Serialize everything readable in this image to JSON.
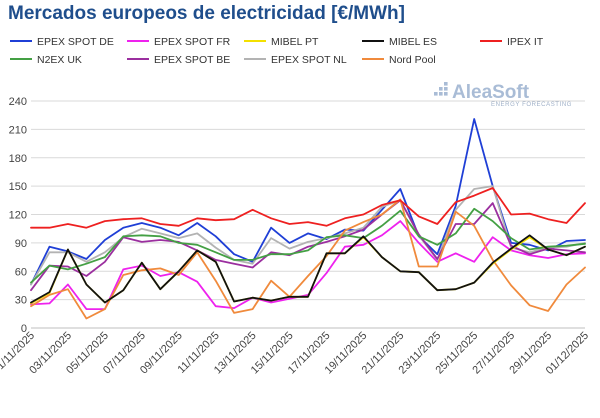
{
  "title": "Mercados europeos de electricidad [€/MWh]",
  "logo": {
    "name": "AleaSoft",
    "tagline": "ENERGY FORECASTING",
    "color": "#a9bcd6",
    "tagline_color": "#9fb0c8"
  },
  "chart_data": {
    "type": "line",
    "x": [
      "01/11/2025",
      "02/11/2025",
      "03/11/2025",
      "04/11/2025",
      "05/11/2025",
      "06/11/2025",
      "07/11/2025",
      "08/11/2025",
      "09/11/2025",
      "10/11/2025",
      "11/11/2025",
      "12/11/2025",
      "13/11/2025",
      "14/11/2025",
      "15/11/2025",
      "16/11/2025",
      "17/11/2025",
      "18/11/2025",
      "19/11/2025",
      "20/11/2025",
      "21/11/2025",
      "22/11/2025",
      "23/11/2025",
      "24/11/2025",
      "25/11/2025",
      "26/11/2025",
      "27/11/2025",
      "28/11/2025",
      "29/11/2025",
      "30/11/2025",
      "01/12/2025"
    ],
    "x_tick_labels": [
      "01/11/2025",
      "03/11/2025",
      "05/11/2025",
      "07/11/2025",
      "09/11/2025",
      "11/11/2025",
      "13/11/2025",
      "15/11/2025",
      "17/11/2025",
      "19/11/2025",
      "21/11/2025",
      "23/11/2025",
      "25/11/2025",
      "27/11/2025",
      "29/11/2025",
      "01/12/2025"
    ],
    "ylim": [
      0,
      240
    ],
    "yticks": [
      0,
      30,
      60,
      90,
      120,
      150,
      180,
      210,
      240
    ],
    "grid": true,
    "legend_position": "top",
    "series": [
      {
        "name": "EPEX SPOT DE",
        "color": "#1f3fd6",
        "values": [
          46,
          86,
          81,
          73,
          93,
          106,
          111,
          106,
          98,
          111,
          97,
          78,
          70,
          106,
          90,
          100,
          94,
          104,
          103,
          125,
          147,
          97,
          78,
          129,
          221,
          150,
          90,
          88,
          82,
          92,
          93
        ]
      },
      {
        "name": "EPEX SPOT FR",
        "color": "#ee22ee",
        "values": [
          25,
          26,
          46,
          20,
          20,
          62,
          66,
          55,
          59,
          49,
          23,
          21,
          32,
          27,
          31,
          35,
          58,
          86,
          88,
          98,
          113,
          90,
          70,
          79,
          70,
          96,
          82,
          77,
          74,
          78,
          79
        ]
      },
      {
        "name": "MIBEL PT",
        "color": "#f3e000",
        "values": [
          26,
          37,
          83,
          46,
          27,
          40,
          69,
          41,
          60,
          82,
          70,
          28,
          32,
          29,
          33,
          33,
          79,
          79,
          96,
          75,
          60,
          59,
          40,
          41,
          48,
          68,
          83,
          96,
          83,
          77,
          86
        ]
      },
      {
        "name": "MIBEL ES",
        "color": "#111111",
        "values": [
          27,
          38,
          83,
          46,
          27,
          40,
          69,
          41,
          60,
          82,
          70,
          28,
          32,
          29,
          33,
          33,
          79,
          79,
          97,
          75,
          60,
          59,
          40,
          41,
          48,
          69,
          84,
          98,
          83,
          77,
          86
        ]
      },
      {
        "name": "IPEX IT",
        "color": "#ee2020",
        "values": [
          106,
          106,
          110,
          106,
          113,
          115,
          116,
          110,
          108,
          116,
          114,
          115,
          125,
          116,
          110,
          112,
          108,
          116,
          120,
          130,
          135,
          118,
          110,
          133,
          140,
          148,
          120,
          121,
          115,
          111,
          132
        ]
      },
      {
        "name": "N2EX UK",
        "color": "#44a044",
        "values": [
          48,
          66,
          62,
          68,
          75,
          97,
          98,
          97,
          90,
          88,
          80,
          72,
          72,
          78,
          78,
          82,
          96,
          98,
          95,
          108,
          124,
          97,
          88,
          100,
          126,
          113,
          95,
          83,
          86,
          87,
          89
        ]
      },
      {
        "name": "EPEX SPOT BE",
        "color": "#9b2f9f",
        "values": [
          40,
          66,
          65,
          55,
          70,
          96,
          91,
          93,
          91,
          82,
          72,
          68,
          64,
          80,
          77,
          86,
          91,
          97,
          104,
          120,
          135,
          99,
          73,
          110,
          110,
          132,
          87,
          78,
          84,
          82,
          80
        ]
      },
      {
        "name": "EPEX SPOT NL",
        "color": "#b3b3b3",
        "values": [
          46,
          80,
          80,
          70,
          80,
          96,
          105,
          100,
          95,
          100,
          85,
          72,
          68,
          95,
          84,
          91,
          95,
          100,
          106,
          128,
          135,
          98,
          72,
          125,
          147,
          150,
          85,
          80,
          85,
          86,
          90
        ]
      },
      {
        "name": "Nord Pool",
        "color": "#f08a3c",
        "values": [
          23,
          35,
          41,
          10,
          20,
          56,
          61,
          63,
          56,
          80,
          50,
          16,
          20,
          50,
          33,
          55,
          76,
          103,
          112,
          120,
          136,
          65,
          65,
          123,
          108,
          72,
          45,
          24,
          18,
          46,
          64
        ]
      }
    ]
  }
}
